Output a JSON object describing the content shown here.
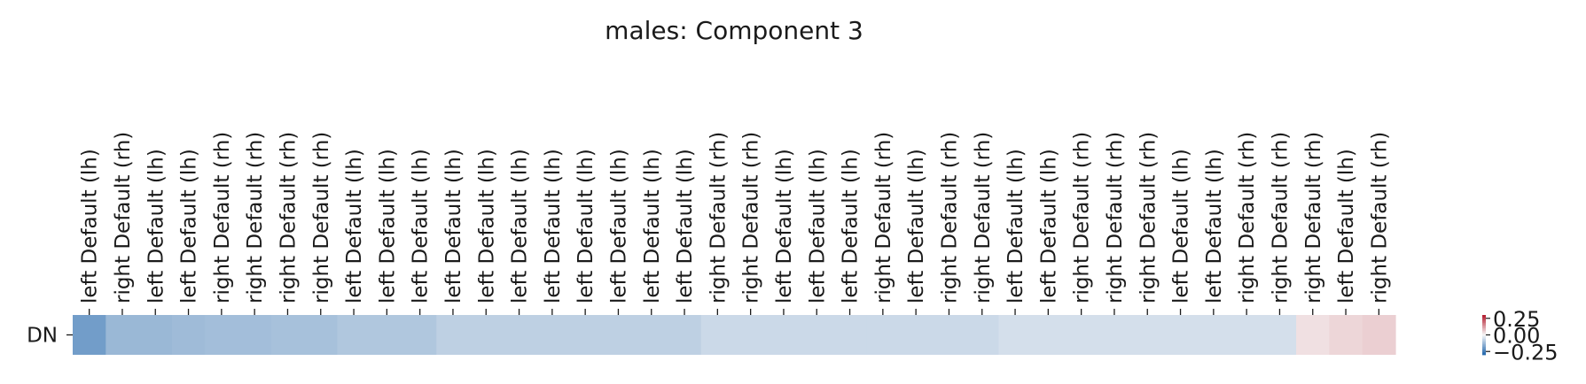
{
  "chart_data": {
    "type": "heatmap",
    "title": "males: Component 3",
    "row_labels": [
      "DN"
    ],
    "column_labels": [
      "left Default (lh)",
      "right Default (rh)",
      "left Default (lh)",
      "left Default (lh)",
      "right Default (rh)",
      "right Default (rh)",
      "right Default (rh)",
      "right Default (rh)",
      "left Default (lh)",
      "left Default (lh)",
      "left Default (lh)",
      "left Default (lh)",
      "left Default (lh)",
      "left Default (lh)",
      "left Default (lh)",
      "left Default (lh)",
      "left Default (lh)",
      "left Default (lh)",
      "left Default (lh)",
      "right Default (rh)",
      "right Default (rh)",
      "left Default (lh)",
      "left Default (lh)",
      "left Default (lh)",
      "right Default (rh)",
      "left Default (lh)",
      "right Default (rh)",
      "right Default (rh)",
      "left Default (lh)",
      "left Default (lh)",
      "right Default (rh)",
      "right Default (rh)",
      "right Default (rh)",
      "left Default (lh)",
      "left Default (lh)",
      "right Default (rh)",
      "right Default (rh)",
      "right Default (rh)",
      "left Default (lh)",
      "right Default (rh)"
    ],
    "values": [
      [
        -0.3,
        -0.21,
        -0.21,
        -0.2,
        -0.19,
        -0.19,
        -0.18,
        -0.18,
        -0.16,
        -0.16,
        -0.16,
        -0.13,
        -0.13,
        -0.13,
        -0.13,
        -0.13,
        -0.13,
        -0.13,
        -0.13,
        -0.1,
        -0.1,
        -0.1,
        -0.1,
        -0.1,
        -0.1,
        -0.1,
        -0.1,
        -0.1,
        -0.08,
        -0.08,
        -0.08,
        -0.08,
        -0.08,
        -0.08,
        -0.08,
        -0.08,
        -0.08,
        0.07,
        0.1,
        0.12
      ]
    ],
    "colorbar": {
      "ticks": [
        0.25,
        0.0,
        -0.25
      ],
      "tick_labels": [
        "0.25",
        "0.00",
        "−0.25"
      ],
      "vmin": -0.3,
      "vmax": 0.3
    },
    "colormap": {
      "negative": "#2166ac",
      "neutral": "#f7f7f7",
      "positive": "#b2182b"
    },
    "grid": false
  }
}
